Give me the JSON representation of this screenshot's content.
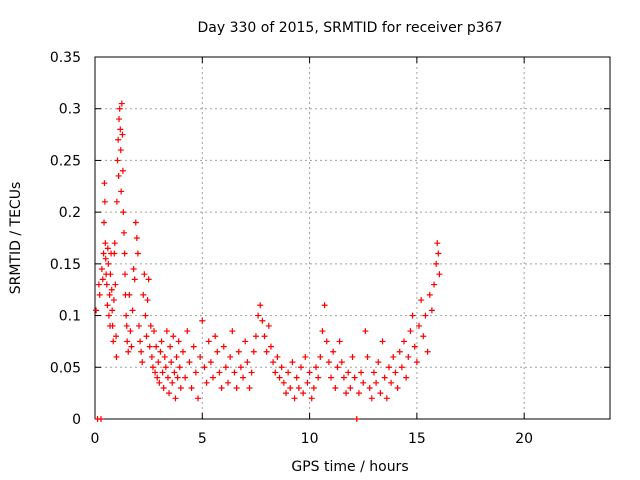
{
  "chart_data": {
    "type": "scatter",
    "title": "Day 330 of 2015, SRMTID for receiver p367",
    "xlabel": "GPS time / hours",
    "ylabel": "SRMTID / TECUs",
    "xlim": [
      0,
      24
    ],
    "ylim": [
      0,
      0.35
    ],
    "grid": true,
    "x_ticks": [
      0,
      5,
      10,
      15,
      20
    ],
    "x_tick_labels": [
      "0",
      "5",
      "10",
      "15",
      "20"
    ],
    "y_ticks": [
      0,
      0.05,
      0.1,
      0.15,
      0.2,
      0.25,
      0.3,
      0.35
    ],
    "y_tick_labels": [
      "0",
      "0.05",
      "0.1",
      "0.15",
      "0.2",
      "0.25",
      "0.3",
      "0.35"
    ],
    "marker": "+",
    "marker_color": "#ff0000",
    "series": [
      {
        "name": "SRMTID",
        "points": [
          [
            0.05,
            0.105
          ],
          [
            0.12,
            0.0
          ],
          [
            0.18,
            0.13
          ],
          [
            0.22,
            0.12
          ],
          [
            0.28,
            0.0
          ],
          [
            0.32,
            0.145
          ],
          [
            0.36,
            0.135
          ],
          [
            0.4,
            0.16
          ],
          [
            0.42,
            0.19
          ],
          [
            0.44,
            0.228
          ],
          [
            0.46,
            0.21
          ],
          [
            0.48,
            0.17
          ],
          [
            0.5,
            0.155
          ],
          [
            0.52,
            0.14
          ],
          [
            0.55,
            0.13
          ],
          [
            0.58,
            0.11
          ],
          [
            0.6,
            0.165
          ],
          [
            0.62,
            0.15
          ],
          [
            0.65,
            0.1
          ],
          [
            0.68,
            0.12
          ],
          [
            0.7,
            0.09
          ],
          [
            0.72,
            0.14
          ],
          [
            0.75,
            0.16
          ],
          [
            0.78,
            0.125
          ],
          [
            0.8,
            0.105
          ],
          [
            0.82,
            0.09
          ],
          [
            0.85,
            0.075
          ],
          [
            0.88,
            0.115
          ],
          [
            0.9,
            0.16
          ],
          [
            0.92,
            0.17
          ],
          [
            0.95,
            0.13
          ],
          [
            0.98,
            0.08
          ],
          [
            1.0,
            0.06
          ],
          [
            1.02,
            0.21
          ],
          [
            1.05,
            0.25
          ],
          [
            1.08,
            0.27
          ],
          [
            1.1,
            0.235
          ],
          [
            1.12,
            0.29
          ],
          [
            1.15,
            0.3
          ],
          [
            1.18,
            0.28
          ],
          [
            1.2,
            0.26
          ],
          [
            1.22,
            0.22
          ],
          [
            1.25,
            0.305
          ],
          [
            1.28,
            0.275
          ],
          [
            1.3,
            0.24
          ],
          [
            1.32,
            0.2
          ],
          [
            1.35,
            0.18
          ],
          [
            1.38,
            0.16
          ],
          [
            1.4,
            0.14
          ],
          [
            1.42,
            0.12
          ],
          [
            1.45,
            0.1
          ],
          [
            1.48,
            0.09
          ],
          [
            1.5,
            0.075
          ],
          [
            1.55,
            0.065
          ],
          [
            1.6,
            0.12
          ],
          [
            1.65,
            0.085
          ],
          [
            1.7,
            0.07
          ],
          [
            1.75,
            0.105
          ],
          [
            1.8,
            0.145
          ],
          [
            1.85,
            0.135
          ],
          [
            1.9,
            0.19
          ],
          [
            1.95,
            0.175
          ],
          [
            2.0,
            0.16
          ],
          [
            2.05,
            0.09
          ],
          [
            2.1,
            0.075
          ],
          [
            2.15,
            0.065
          ],
          [
            2.2,
            0.055
          ],
          [
            2.25,
            0.12
          ],
          [
            2.3,
            0.14
          ],
          [
            2.35,
            0.1
          ],
          [
            2.4,
            0.08
          ],
          [
            2.45,
            0.115
          ],
          [
            2.5,
            0.135
          ],
          [
            2.55,
            0.07
          ],
          [
            2.6,
            0.09
          ],
          [
            2.65,
            0.06
          ],
          [
            2.7,
            0.05
          ],
          [
            2.75,
            0.085
          ],
          [
            2.8,
            0.045
          ],
          [
            2.85,
            0.07
          ],
          [
            2.9,
            0.04
          ],
          [
            2.95,
            0.055
          ],
          [
            3.0,
            0.035
          ],
          [
            3.05,
            0.065
          ],
          [
            3.1,
            0.075
          ],
          [
            3.15,
            0.045
          ],
          [
            3.2,
            0.03
          ],
          [
            3.25,
            0.06
          ],
          [
            3.3,
            0.05
          ],
          [
            3.35,
            0.085
          ],
          [
            3.4,
            0.04
          ],
          [
            3.45,
            0.025
          ],
          [
            3.5,
            0.07
          ],
          [
            3.55,
            0.055
          ],
          [
            3.6,
            0.035
          ],
          [
            3.65,
            0.08
          ],
          [
            3.7,
            0.045
          ],
          [
            3.75,
            0.02
          ],
          [
            3.8,
            0.06
          ],
          [
            3.85,
            0.04
          ],
          [
            3.9,
            0.075
          ],
          [
            3.95,
            0.05
          ],
          [
            4.0,
            0.03
          ],
          [
            4.1,
            0.065
          ],
          [
            4.2,
            0.04
          ],
          [
            4.3,
            0.085
          ],
          [
            4.4,
            0.055
          ],
          [
            4.5,
            0.03
          ],
          [
            4.6,
            0.07
          ],
          [
            4.7,
            0.045
          ],
          [
            4.8,
            0.02
          ],
          [
            4.9,
            0.06
          ],
          [
            5.0,
            0.095
          ],
          [
            5.1,
            0.05
          ],
          [
            5.2,
            0.035
          ],
          [
            5.3,
            0.075
          ],
          [
            5.4,
            0.055
          ],
          [
            5.5,
            0.04
          ],
          [
            5.6,
            0.08
          ],
          [
            5.7,
            0.065
          ],
          [
            5.8,
            0.045
          ],
          [
            5.9,
            0.03
          ],
          [
            6.0,
            0.07
          ],
          [
            6.1,
            0.05
          ],
          [
            6.2,
            0.035
          ],
          [
            6.3,
            0.06
          ],
          [
            6.4,
            0.085
          ],
          [
            6.5,
            0.045
          ],
          [
            6.6,
            0.03
          ],
          [
            6.7,
            0.065
          ],
          [
            6.8,
            0.05
          ],
          [
            6.9,
            0.04
          ],
          [
            7.0,
            0.075
          ],
          [
            7.1,
            0.055
          ],
          [
            7.2,
            0.03
          ],
          [
            7.3,
            0.045
          ],
          [
            7.4,
            0.065
          ],
          [
            7.5,
            0.08
          ],
          [
            7.6,
            0.1
          ],
          [
            7.7,
            0.11
          ],
          [
            7.8,
            0.095
          ],
          [
            7.9,
            0.08
          ],
          [
            8.0,
            0.065
          ],
          [
            8.1,
            0.09
          ],
          [
            8.2,
            0.07
          ],
          [
            8.3,
            0.055
          ],
          [
            8.4,
            0.045
          ],
          [
            8.5,
            0.06
          ],
          [
            8.6,
            0.04
          ],
          [
            8.7,
            0.05
          ],
          [
            8.8,
            0.035
          ],
          [
            8.9,
            0.025
          ],
          [
            9.0,
            0.045
          ],
          [
            9.1,
            0.03
          ],
          [
            9.2,
            0.055
          ],
          [
            9.3,
            0.02
          ],
          [
            9.4,
            0.04
          ],
          [
            9.5,
            0.03
          ],
          [
            9.6,
            0.05
          ],
          [
            9.7,
            0.025
          ],
          [
            9.8,
            0.06
          ],
          [
            9.9,
            0.035
          ],
          [
            10.0,
            0.045
          ],
          [
            10.1,
            0.02
          ],
          [
            10.2,
            0.03
          ],
          [
            10.3,
            0.05
          ],
          [
            10.4,
            0.04
          ],
          [
            10.5,
            0.06
          ],
          [
            10.6,
            0.085
          ],
          [
            10.7,
            0.11
          ],
          [
            10.8,
            0.075
          ],
          [
            10.9,
            0.055
          ],
          [
            11.0,
            0.04
          ],
          [
            11.1,
            0.065
          ],
          [
            11.2,
            0.03
          ],
          [
            11.3,
            0.05
          ],
          [
            11.4,
            0.075
          ],
          [
            11.5,
            0.055
          ],
          [
            11.6,
            0.04
          ],
          [
            11.7,
            0.025
          ],
          [
            11.8,
            0.045
          ],
          [
            11.9,
            0.03
          ],
          [
            12.0,
            0.06
          ],
          [
            12.1,
            0.04
          ],
          [
            12.2,
            0.0
          ],
          [
            12.3,
            0.025
          ],
          [
            12.4,
            0.045
          ],
          [
            12.5,
            0.035
          ],
          [
            12.6,
            0.085
          ],
          [
            12.7,
            0.06
          ],
          [
            12.8,
            0.03
          ],
          [
            12.9,
            0.02
          ],
          [
            13.0,
            0.045
          ],
          [
            13.1,
            0.035
          ],
          [
            13.2,
            0.055
          ],
          [
            13.3,
            0.025
          ],
          [
            13.4,
            0.075
          ],
          [
            13.5,
            0.04
          ],
          [
            13.6,
            0.02
          ],
          [
            13.7,
            0.05
          ],
          [
            13.8,
            0.035
          ],
          [
            13.9,
            0.06
          ],
          [
            14.0,
            0.045
          ],
          [
            14.1,
            0.03
          ],
          [
            14.2,
            0.065
          ],
          [
            14.3,
            0.05
          ],
          [
            14.4,
            0.075
          ],
          [
            14.5,
            0.04
          ],
          [
            14.6,
            0.06
          ],
          [
            14.7,
            0.085
          ],
          [
            14.8,
            0.1
          ],
          [
            14.9,
            0.07
          ],
          [
            15.0,
            0.055
          ],
          [
            15.1,
            0.09
          ],
          [
            15.2,
            0.115
          ],
          [
            15.3,
            0.08
          ],
          [
            15.4,
            0.1
          ],
          [
            15.5,
            0.065
          ],
          [
            15.6,
            0.12
          ],
          [
            15.7,
            0.105
          ],
          [
            15.8,
            0.13
          ],
          [
            15.9,
            0.15
          ],
          [
            15.95,
            0.17
          ],
          [
            16.0,
            0.16
          ],
          [
            16.05,
            0.14
          ]
        ]
      }
    ]
  }
}
